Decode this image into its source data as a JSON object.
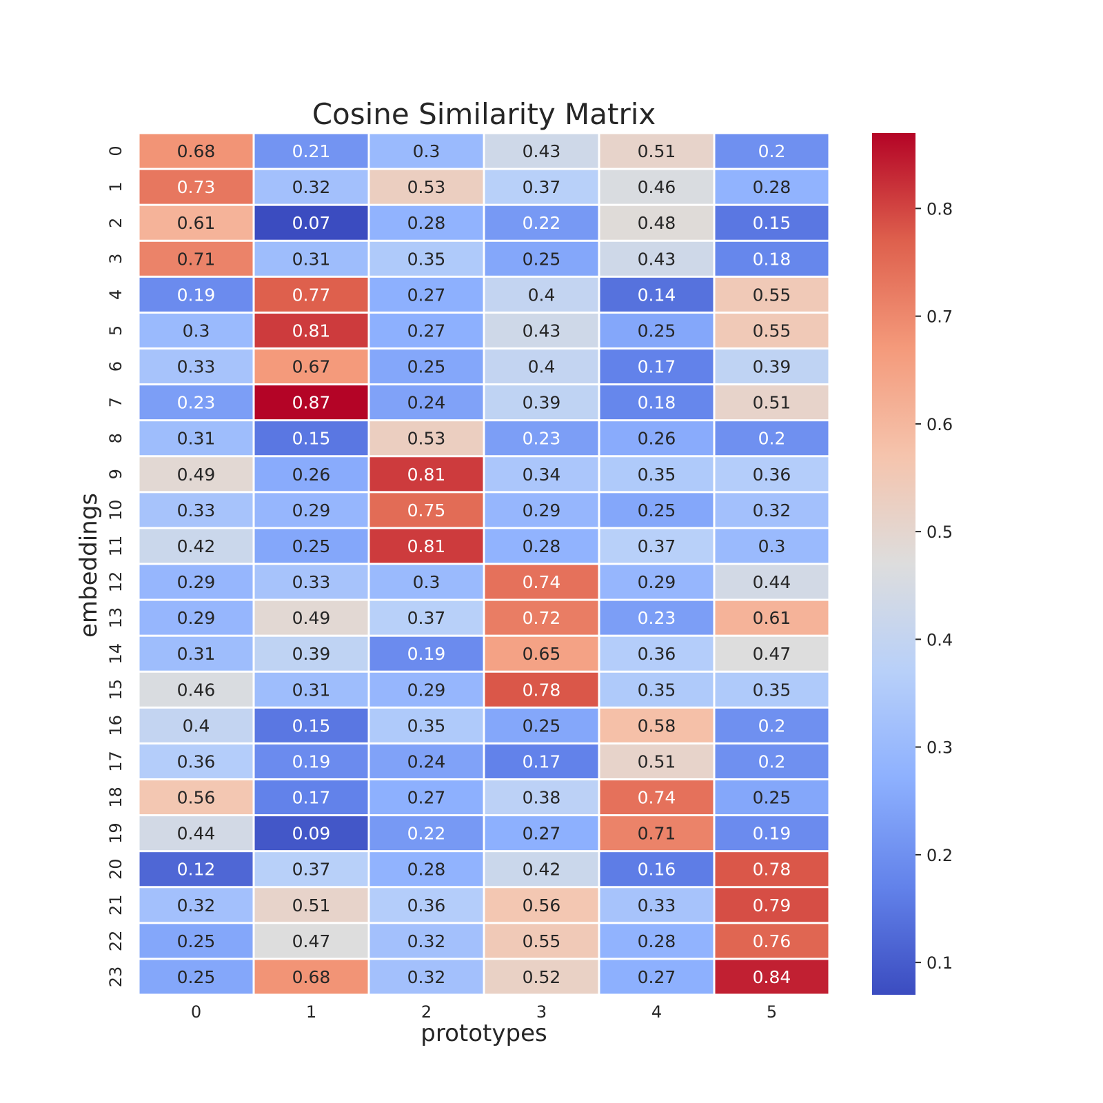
{
  "chart_data": {
    "type": "heatmap",
    "title": "Cosine Similarity Matrix",
    "xlabel": "prototypes",
    "ylabel": "embeddings",
    "x_ticks": [
      "0",
      "1",
      "2",
      "3",
      "4",
      "5"
    ],
    "y_ticks": [
      "0",
      "1",
      "2",
      "3",
      "4",
      "5",
      "6",
      "7",
      "8",
      "9",
      "10",
      "11",
      "12",
      "13",
      "14",
      "15",
      "16",
      "17",
      "18",
      "19",
      "20",
      "21",
      "22",
      "23"
    ],
    "values": [
      [
        0.68,
        0.21,
        0.3,
        0.43,
        0.51,
        0.2
      ],
      [
        0.73,
        0.32,
        0.53,
        0.37,
        0.46,
        0.28
      ],
      [
        0.61,
        0.07,
        0.28,
        0.22,
        0.48,
        0.15
      ],
      [
        0.71,
        0.31,
        0.35,
        0.25,
        0.43,
        0.18
      ],
      [
        0.19,
        0.77,
        0.27,
        0.4,
        0.14,
        0.55
      ],
      [
        0.3,
        0.81,
        0.27,
        0.43,
        0.25,
        0.55
      ],
      [
        0.33,
        0.67,
        0.25,
        0.4,
        0.17,
        0.39
      ],
      [
        0.23,
        0.87,
        0.24,
        0.39,
        0.18,
        0.51
      ],
      [
        0.31,
        0.15,
        0.53,
        0.23,
        0.26,
        0.2
      ],
      [
        0.49,
        0.26,
        0.81,
        0.34,
        0.35,
        0.36
      ],
      [
        0.33,
        0.29,
        0.75,
        0.29,
        0.25,
        0.32
      ],
      [
        0.42,
        0.25,
        0.81,
        0.28,
        0.37,
        0.3
      ],
      [
        0.29,
        0.33,
        0.3,
        0.74,
        0.29,
        0.44
      ],
      [
        0.29,
        0.49,
        0.37,
        0.72,
        0.23,
        0.61
      ],
      [
        0.31,
        0.39,
        0.19,
        0.65,
        0.36,
        0.47
      ],
      [
        0.46,
        0.31,
        0.29,
        0.78,
        0.35,
        0.35
      ],
      [
        0.4,
        0.15,
        0.35,
        0.25,
        0.58,
        0.2
      ],
      [
        0.36,
        0.19,
        0.24,
        0.17,
        0.51,
        0.2
      ],
      [
        0.56,
        0.17,
        0.27,
        0.38,
        0.74,
        0.25
      ],
      [
        0.44,
        0.09,
        0.22,
        0.27,
        0.71,
        0.19
      ],
      [
        0.12,
        0.37,
        0.28,
        0.42,
        0.16,
        0.78
      ],
      [
        0.32,
        0.51,
        0.36,
        0.56,
        0.33,
        0.79
      ],
      [
        0.25,
        0.47,
        0.32,
        0.55,
        0.28,
        0.76
      ],
      [
        0.25,
        0.68,
        0.32,
        0.52,
        0.27,
        0.84
      ]
    ],
    "colormap": "coolwarm",
    "vmin": 0.07,
    "vmax": 0.87,
    "colorbar_ticks": [
      0.1,
      0.2,
      0.3,
      0.4,
      0.5,
      0.6,
      0.7,
      0.8
    ],
    "colorbar_tick_labels": [
      "0.1",
      "0.2",
      "0.3",
      "0.4",
      "0.5",
      "0.6",
      "0.7",
      "0.8"
    ],
    "annotation_light_color": "#ffffff",
    "annotation_dark_color": "#262626",
    "grid_line_color": "#ffffff",
    "legend_position": "right"
  }
}
